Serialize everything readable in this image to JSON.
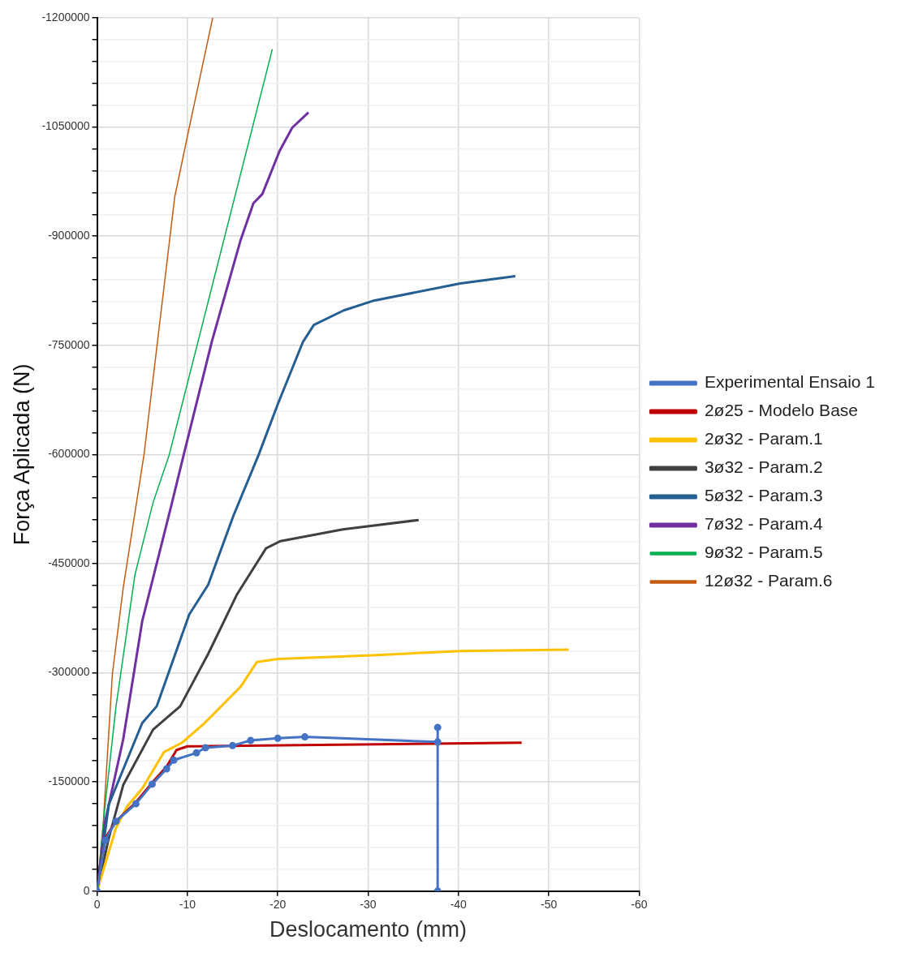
{
  "chart_data": {
    "type": "line",
    "xlabel": "Deslocamento (mm)",
    "ylabel": "Força Aplicada (N)",
    "xlim": [
      0,
      -60
    ],
    "xticks": [
      0,
      -10,
      -20,
      -30,
      -40,
      -50,
      -60
    ],
    "ylim": [
      0,
      -1200000
    ],
    "yticks": [
      0,
      {
        "value": -30000,
        "label": null
      },
      {
        "value": -60000,
        "label": null
      },
      {
        "value": -90000,
        "label": null
      },
      {
        "value": -120000,
        "label": null
      },
      -150000,
      {
        "value": -180000,
        "label": null
      },
      {
        "value": -210000,
        "label": null
      },
      {
        "value": -240000,
        "label": null
      },
      {
        "value": -270000,
        "label": null
      },
      -300000,
      {
        "value": -330000,
        "label": null
      },
      {
        "value": -360000,
        "label": null
      },
      {
        "value": -390000,
        "label": null
      },
      {
        "value": -420000,
        "label": null
      },
      -450000,
      {
        "value": -480000,
        "label": null
      },
      {
        "value": -510000,
        "label": null
      },
      {
        "value": -540000,
        "label": null
      },
      {
        "value": -570000,
        "label": null
      },
      -600000,
      {
        "value": -630000,
        "label": null
      },
      {
        "value": -660000,
        "label": null
      },
      {
        "value": -690000,
        "label": null
      },
      {
        "value": -720000,
        "label": null
      },
      -750000,
      {
        "value": -780000,
        "label": null
      },
      {
        "value": -810000,
        "label": null
      },
      {
        "value": -840000,
        "label": null
      },
      {
        "value": -870000,
        "label": null
      },
      -900000,
      {
        "value": -930000,
        "label": null
      },
      {
        "value": -960000,
        "label": null
      },
      {
        "value": -990000,
        "label": null
      },
      {
        "value": -1020000,
        "label": null
      },
      -1050000,
      {
        "value": -1080000,
        "label": null
      },
      {
        "value": -1110000,
        "label": null
      },
      {
        "value": -1140000,
        "label": null
      },
      {
        "value": -1170000,
        "label": null
      },
      -1200000
    ],
    "grid": true,
    "legend": "right",
    "series": [
      {
        "name": "Experimental Ensaio 1",
        "color": "#4472c4",
        "marker": "circle",
        "x": [
          0,
          -0.9,
          -2.1,
          -4.3,
          -6.1,
          -7.7,
          -8.5,
          -11,
          -12,
          -15,
          -17,
          -20,
          -23,
          -37.7,
          -37.7,
          -37.7
        ],
        "values": [
          0,
          -70000,
          -96000,
          -120000,
          -147000,
          -168000,
          -180000,
          -190000,
          -197000,
          -200000,
          -207000,
          -210000,
          -212000,
          -205000,
          -225000,
          0
        ]
      },
      {
        "name": "2ø25 - Modelo Base",
        "color": "#c00000",
        "marker": "none",
        "x": [
          0,
          -0.9,
          -2.1,
          -4.3,
          -6.1,
          -7.7,
          -8.8,
          -10,
          -47
        ],
        "values": [
          0,
          -73000,
          -96000,
          -122000,
          -149000,
          -171000,
          -194000,
          -199000,
          -204000
        ]
      },
      {
        "name": "2ø32 - Param.1",
        "color": "#ffc000",
        "marker": "none",
        "x": [
          0,
          -2.1,
          -3.3,
          -5,
          -7.4,
          -9.4,
          -11.9,
          -15.9,
          -17.7,
          -20,
          -30.5,
          -40.2,
          -52.2
        ],
        "values": [
          0,
          -87000,
          -116000,
          -141000,
          -191000,
          -204000,
          -231000,
          -281000,
          -315000,
          -319000,
          -324000,
          -330000,
          -332000
        ]
      },
      {
        "name": "3ø32 - Param.2",
        "color": "#404040",
        "marker": "none",
        "x": [
          0,
          -1.3,
          -2.9,
          -6.2,
          -9.2,
          -12.3,
          -15.5,
          -18.7,
          -20.3,
          -27.2,
          -35.6
        ],
        "values": [
          0,
          -73000,
          -146000,
          -222000,
          -254000,
          -326000,
          -408000,
          -471000,
          -481000,
          -497000,
          -510000
        ]
      },
      {
        "name": "5ø32 - Param.3",
        "color": "#255e91",
        "marker": "none",
        "x": [
          0,
          -1.3,
          -5,
          -6.6,
          -10.2,
          -12.3,
          -15.1,
          -17.9,
          -20,
          -22.8,
          -24,
          -27.3,
          -30.5,
          -40.2,
          -46.3
        ],
        "values": [
          0,
          -119000,
          -231000,
          -254000,
          -380000,
          -421000,
          -516000,
          -600000,
          -669000,
          -755000,
          -778000,
          -798000,
          -811000,
          -835000,
          -845000
        ]
      },
      {
        "name": "7ø32 - Param.4",
        "color": "#7030a0",
        "marker": "none",
        "x": [
          0,
          -0.9,
          -2.9,
          -5,
          -8.2,
          -9.6,
          -12.7,
          -15.9,
          -17.3,
          -18.3,
          -20.2,
          -21.6,
          -23.4
        ],
        "values": [
          0,
          -96000,
          -209000,
          -371000,
          -529000,
          -600000,
          -755000,
          -895000,
          -945000,
          -958000,
          -1017000,
          -1049000,
          -1070000
        ]
      },
      {
        "name": "9ø32 - Param.5",
        "color": "#00b050",
        "marker": "none",
        "x": [
          0,
          -0.9,
          -2.1,
          -4.2,
          -6.2,
          -8,
          -19.4
        ],
        "values": [
          0,
          -119000,
          -254000,
          -435000,
          -534000,
          -600000,
          -1157000
        ]
      },
      {
        "name": "12ø32 - Param.6",
        "color": "#c55a11",
        "marker": "none",
        "x": [
          0,
          -0.7,
          -1.7,
          -2.9,
          -5.2,
          -8.6,
          -10.2,
          -12.8
        ],
        "values": [
          0,
          -96000,
          -299000,
          -417000,
          -600000,
          -954000,
          -1049000,
          -1200000
        ]
      }
    ]
  }
}
